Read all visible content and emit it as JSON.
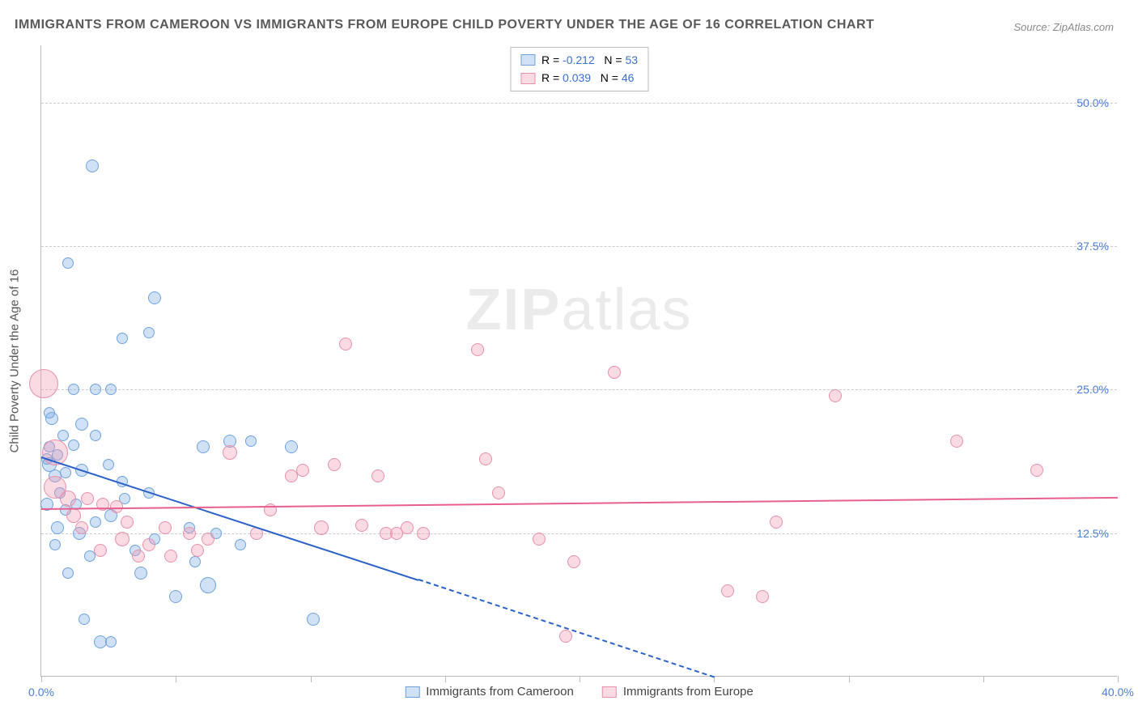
{
  "title": "IMMIGRANTS FROM CAMEROON VS IMMIGRANTS FROM EUROPE CHILD POVERTY UNDER THE AGE OF 16 CORRELATION CHART",
  "source_prefix": "Source: ",
  "source": "ZipAtlas.com",
  "watermark_bold": "ZIP",
  "watermark_rest": "atlas",
  "y_axis_title": "Child Poverty Under the Age of 16",
  "chart": {
    "type": "scatter",
    "background_color": "#ffffff",
    "grid_color": "#cccccc",
    "axis_color": "#bbbbbb",
    "tick_label_color": "#4a7dd8",
    "xlim": [
      0,
      40
    ],
    "ylim": [
      0,
      55
    ],
    "yticks": [
      {
        "v": 12.5,
        "label": "12.5%"
      },
      {
        "v": 25.0,
        "label": "25.0%"
      },
      {
        "v": 37.5,
        "label": "37.5%"
      },
      {
        "v": 50.0,
        "label": "50.0%"
      }
    ],
    "xticks": [
      {
        "v": 0,
        "label": "0.0%"
      },
      {
        "v": 5,
        "label": ""
      },
      {
        "v": 10,
        "label": ""
      },
      {
        "v": 15,
        "label": ""
      },
      {
        "v": 20,
        "label": ""
      },
      {
        "v": 25,
        "label": ""
      },
      {
        "v": 30,
        "label": ""
      },
      {
        "v": 35,
        "label": ""
      },
      {
        "v": 40,
        "label": "40.0%"
      }
    ],
    "series": [
      {
        "name": "Immigrants from Cameroon",
        "fill": "rgba(120,170,230,0.35)",
        "stroke": "#6fa3dd",
        "line_color": "#2a62c9",
        "R": "-0.212",
        "N": "53",
        "trend": {
          "x1": 0,
          "y1": 19.2,
          "x2": 14,
          "y2": 8.5,
          "extrap_x2": 25,
          "extrap_y2": 0
        },
        "points": [
          {
            "x": 0.4,
            "y": 22.5,
            "r": 8
          },
          {
            "x": 0.3,
            "y": 20.0,
            "r": 7
          },
          {
            "x": 0.3,
            "y": 18.5,
            "r": 9
          },
          {
            "x": 0.5,
            "y": 17.5,
            "r": 8
          },
          {
            "x": 0.6,
            "y": 19.3,
            "r": 7
          },
          {
            "x": 0.7,
            "y": 16.0,
            "r": 7
          },
          {
            "x": 0.8,
            "y": 21.0,
            "r": 7
          },
          {
            "x": 0.9,
            "y": 14.5,
            "r": 7
          },
          {
            "x": 0.2,
            "y": 15.0,
            "r": 8
          },
          {
            "x": 1.0,
            "y": 36.0,
            "r": 7
          },
          {
            "x": 1.9,
            "y": 44.5,
            "r": 8
          },
          {
            "x": 1.2,
            "y": 25.0,
            "r": 7
          },
          {
            "x": 1.5,
            "y": 22.0,
            "r": 8
          },
          {
            "x": 2.0,
            "y": 21.0,
            "r": 7
          },
          {
            "x": 2.0,
            "y": 25.0,
            "r": 7
          },
          {
            "x": 1.5,
            "y": 18.0,
            "r": 8
          },
          {
            "x": 1.3,
            "y": 15.0,
            "r": 7
          },
          {
            "x": 1.4,
            "y": 12.5,
            "r": 8
          },
          {
            "x": 2.5,
            "y": 18.5,
            "r": 7
          },
          {
            "x": 2.6,
            "y": 14.0,
            "r": 8
          },
          {
            "x": 2.6,
            "y": 25.0,
            "r": 7
          },
          {
            "x": 3.0,
            "y": 17.0,
            "r": 7
          },
          {
            "x": 3.1,
            "y": 15.5,
            "r": 7
          },
          {
            "x": 3.0,
            "y": 29.5,
            "r": 7
          },
          {
            "x": 4.0,
            "y": 30.0,
            "r": 7
          },
          {
            "x": 4.2,
            "y": 33.0,
            "r": 8
          },
          {
            "x": 3.5,
            "y": 11.0,
            "r": 7
          },
          {
            "x": 3.7,
            "y": 9.0,
            "r": 8
          },
          {
            "x": 4.0,
            "y": 16.0,
            "r": 7
          },
          {
            "x": 1.8,
            "y": 10.5,
            "r": 7
          },
          {
            "x": 2.2,
            "y": 3.0,
            "r": 8
          },
          {
            "x": 2.6,
            "y": 3.0,
            "r": 7
          },
          {
            "x": 1.6,
            "y": 5.0,
            "r": 7
          },
          {
            "x": 4.2,
            "y": 12.0,
            "r": 7
          },
          {
            "x": 5.0,
            "y": 7.0,
            "r": 8
          },
          {
            "x": 5.5,
            "y": 13.0,
            "r": 7
          },
          {
            "x": 5.7,
            "y": 10.0,
            "r": 7
          },
          {
            "x": 6.0,
            "y": 20.0,
            "r": 8
          },
          {
            "x": 6.5,
            "y": 12.5,
            "r": 7
          },
          {
            "x": 7.0,
            "y": 20.5,
            "r": 8
          },
          {
            "x": 7.4,
            "y": 11.5,
            "r": 7
          },
          {
            "x": 6.2,
            "y": 8.0,
            "r": 10
          },
          {
            "x": 7.8,
            "y": 20.5,
            "r": 7
          },
          {
            "x": 9.3,
            "y": 20.0,
            "r": 8
          },
          {
            "x": 10.1,
            "y": 5.0,
            "r": 8
          },
          {
            "x": 1.0,
            "y": 9.0,
            "r": 7
          },
          {
            "x": 0.6,
            "y": 13.0,
            "r": 8
          },
          {
            "x": 0.5,
            "y": 11.5,
            "r": 7
          },
          {
            "x": 0.3,
            "y": 23.0,
            "r": 7
          },
          {
            "x": 0.2,
            "y": 19.0,
            "r": 7
          },
          {
            "x": 0.9,
            "y": 17.8,
            "r": 7
          },
          {
            "x": 2.0,
            "y": 13.5,
            "r": 7
          },
          {
            "x": 1.2,
            "y": 20.2,
            "r": 7
          }
        ]
      },
      {
        "name": "Immigrants from Europe",
        "fill": "rgba(240,150,175,0.35)",
        "stroke": "#e890aa",
        "line_color": "#e85f8f",
        "R": "0.039",
        "N": "46",
        "trend": {
          "x1": 0,
          "y1": 14.7,
          "x2": 40,
          "y2": 15.7
        },
        "points": [
          {
            "x": 0.1,
            "y": 25.5,
            "r": 18
          },
          {
            "x": 0.5,
            "y": 19.5,
            "r": 16
          },
          {
            "x": 0.5,
            "y": 16.5,
            "r": 14
          },
          {
            "x": 1.0,
            "y": 15.5,
            "r": 10
          },
          {
            "x": 1.2,
            "y": 14.0,
            "r": 9
          },
          {
            "x": 1.7,
            "y": 15.5,
            "r": 8
          },
          {
            "x": 2.3,
            "y": 15.0,
            "r": 8
          },
          {
            "x": 2.2,
            "y": 11.0,
            "r": 8
          },
          {
            "x": 3.0,
            "y": 12.0,
            "r": 9
          },
          {
            "x": 3.6,
            "y": 10.5,
            "r": 8
          },
          {
            "x": 3.2,
            "y": 13.5,
            "r": 8
          },
          {
            "x": 4.0,
            "y": 11.5,
            "r": 8
          },
          {
            "x": 4.6,
            "y": 13.0,
            "r": 8
          },
          {
            "x": 4.8,
            "y": 10.5,
            "r": 8
          },
          {
            "x": 5.5,
            "y": 12.5,
            "r": 8
          },
          {
            "x": 5.8,
            "y": 11.0,
            "r": 8
          },
          {
            "x": 7.0,
            "y": 19.5,
            "r": 9
          },
          {
            "x": 8.0,
            "y": 12.5,
            "r": 8
          },
          {
            "x": 8.5,
            "y": 14.5,
            "r": 8
          },
          {
            "x": 9.3,
            "y": 17.5,
            "r": 8
          },
          {
            "x": 9.7,
            "y": 18.0,
            "r": 8
          },
          {
            "x": 10.4,
            "y": 13.0,
            "r": 9
          },
          {
            "x": 10.9,
            "y": 18.5,
            "r": 8
          },
          {
            "x": 11.3,
            "y": 29.0,
            "r": 8
          },
          {
            "x": 11.9,
            "y": 13.2,
            "r": 8
          },
          {
            "x": 12.5,
            "y": 17.5,
            "r": 8
          },
          {
            "x": 12.8,
            "y": 12.5,
            "r": 8
          },
          {
            "x": 13.2,
            "y": 12.5,
            "r": 8
          },
          {
            "x": 13.6,
            "y": 13.0,
            "r": 8
          },
          {
            "x": 14.2,
            "y": 12.5,
            "r": 8
          },
          {
            "x": 16.2,
            "y": 28.5,
            "r": 8
          },
          {
            "x": 16.5,
            "y": 19.0,
            "r": 8
          },
          {
            "x": 17.0,
            "y": 16.0,
            "r": 8
          },
          {
            "x": 18.5,
            "y": 12.0,
            "r": 8
          },
          {
            "x": 19.5,
            "y": 3.5,
            "r": 8
          },
          {
            "x": 19.8,
            "y": 10.0,
            "r": 8
          },
          {
            "x": 21.3,
            "y": 26.5,
            "r": 8
          },
          {
            "x": 25.5,
            "y": 7.5,
            "r": 8
          },
          {
            "x": 26.8,
            "y": 7.0,
            "r": 8
          },
          {
            "x": 27.3,
            "y": 13.5,
            "r": 8
          },
          {
            "x": 29.5,
            "y": 24.5,
            "r": 8
          },
          {
            "x": 34.0,
            "y": 20.5,
            "r": 8
          },
          {
            "x": 37.0,
            "y": 18.0,
            "r": 8
          },
          {
            "x": 2.8,
            "y": 14.8,
            "r": 8
          },
          {
            "x": 6.2,
            "y": 12.0,
            "r": 8
          },
          {
            "x": 1.5,
            "y": 13.0,
            "r": 8
          }
        ]
      }
    ]
  },
  "legend_top_labels": {
    "R": "R =",
    "N": "N ="
  }
}
